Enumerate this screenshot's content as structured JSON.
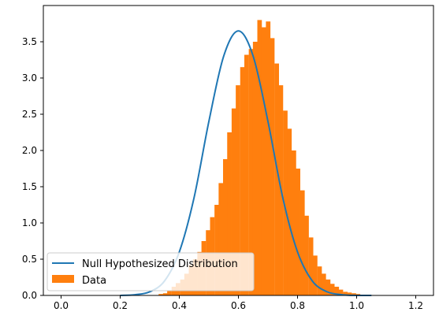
{
  "chart_data": {
    "type": "bar",
    "title": "",
    "xlabel": "",
    "ylabel": "",
    "xlim": [
      -0.06,
      1.26
    ],
    "ylim": [
      0,
      4.0
    ],
    "x_ticks": [
      0.0,
      0.2,
      0.4,
      0.6,
      0.8,
      1.0,
      1.2
    ],
    "x_tick_labels": [
      "0.0",
      "0.2",
      "0.4",
      "0.6",
      "0.8",
      "1.0",
      "1.2"
    ],
    "y_ticks": [
      0.0,
      0.5,
      1.0,
      1.5,
      2.0,
      2.5,
      3.0,
      3.5
    ],
    "y_tick_labels": [
      "0.0",
      "0.5",
      "1.0",
      "1.5",
      "2.0",
      "2.5",
      "3.0",
      "3.5"
    ],
    "grid": false,
    "legend_position": "lower-left",
    "series": [
      {
        "name": "Null Hypothesized Distribution",
        "kind": "line",
        "color": "#1f77b4",
        "x": [
          0.2,
          0.25,
          0.3,
          0.35,
          0.4,
          0.45,
          0.5,
          0.55,
          0.6,
          0.65,
          0.7,
          0.75,
          0.8,
          0.85,
          0.9,
          0.95,
          1.0,
          1.05
        ],
        "y": [
          0.0,
          0.01,
          0.05,
          0.2,
          0.6,
          1.35,
          2.4,
          3.3,
          3.65,
          3.3,
          2.4,
          1.35,
          0.6,
          0.2,
          0.05,
          0.01,
          0.0,
          0.0
        ]
      },
      {
        "name": "Data",
        "kind": "histogram",
        "color": "#ff7f0e",
        "bin_width": 0.0145,
        "bin_starts": [
          0.33,
          0.345,
          0.359,
          0.374,
          0.388,
          0.403,
          0.417,
          0.432,
          0.446,
          0.461,
          0.475,
          0.49,
          0.504,
          0.519,
          0.533,
          0.548,
          0.562,
          0.577,
          0.591,
          0.606,
          0.62,
          0.635,
          0.649,
          0.664,
          0.678,
          0.693,
          0.707,
          0.722,
          0.736,
          0.751,
          0.765,
          0.78,
          0.794,
          0.809,
          0.823,
          0.838,
          0.852,
          0.867,
          0.881,
          0.896,
          0.91,
          0.925,
          0.939,
          0.954,
          0.968,
          0.983,
          0.997,
          1.012,
          1.026
        ],
        "values": [
          0.02,
          0.03,
          0.07,
          0.12,
          0.17,
          0.22,
          0.3,
          0.42,
          0.5,
          0.6,
          0.75,
          0.9,
          1.08,
          1.25,
          1.55,
          1.88,
          2.25,
          2.58,
          2.9,
          3.15,
          3.32,
          3.4,
          3.5,
          3.8,
          3.7,
          3.78,
          3.55,
          3.2,
          2.9,
          2.55,
          2.3,
          2.0,
          1.75,
          1.45,
          1.1,
          0.8,
          0.55,
          0.4,
          0.3,
          0.22,
          0.16,
          0.12,
          0.08,
          0.05,
          0.04,
          0.03,
          0.02,
          0.01,
          0.01
        ]
      }
    ]
  }
}
